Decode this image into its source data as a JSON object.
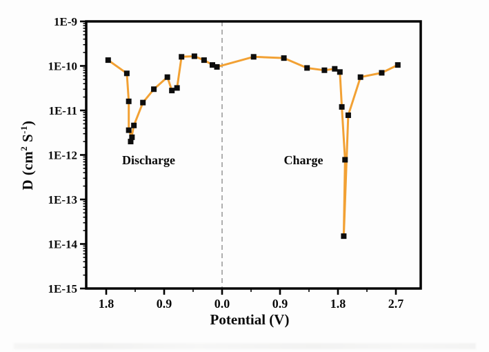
{
  "figure": {
    "y_axis": {
      "label_parts": {
        "prefix": "D (cm",
        "sup1": "2",
        "mid": " S",
        "sup2": "-1",
        "suffix": ")"
      },
      "tick_labels": [
        "1E-9",
        "1E-10",
        "1E-11",
        "1E-12",
        "1E-13",
        "1E-14",
        "1E-15"
      ],
      "tick_exponents": [
        -9,
        -10,
        -11,
        -12,
        -13,
        -14,
        -15
      ],
      "scale": "log"
    },
    "x_axis": {
      "label": "Potential (V)",
      "tick_labels": [
        "1.8",
        "0.9",
        "0.0",
        "0.9",
        "1.8",
        "2.7"
      ],
      "tick_positions": [
        -1.8,
        -0.9,
        0.0,
        0.9,
        1.8,
        2.7
      ],
      "minor_tick_positions": [
        -1.35,
        -0.45,
        0.45,
        1.35,
        2.25
      ],
      "note": "negative positions are the discharge branch; axis labels show absolute value"
    },
    "region_labels": {
      "discharge": "Discharge",
      "charge": "Charge"
    },
    "colors": {
      "line": "#F2A134",
      "marker": "#0d0d0d",
      "axis": "#000000",
      "divider": "#9b9b9b",
      "background": "#fdfdfd"
    }
  },
  "chart_data": {
    "type": "line",
    "title": "",
    "xlabel": "Potential (V)",
    "ylabel": "D (cm^2 S^-1)",
    "y_scale": "log",
    "ylim": [
      1e-15,
      1e-09
    ],
    "x_axis_folded_at": 0.0,
    "legend": "none",
    "grid": false,
    "marker": "filled-square",
    "series": [
      {
        "name": "Discharge",
        "axis_sign": -1,
        "points": [
          [
            1.77,
            1.35e-10
          ],
          [
            1.48,
            6.8e-11
          ],
          [
            1.45,
            1.6e-11
          ],
          [
            1.45,
            3.6e-12
          ],
          [
            1.4,
            2.5e-12
          ],
          [
            1.42,
            2e-12
          ],
          [
            1.37,
            4.6e-12
          ],
          [
            1.23,
            1.5e-11
          ],
          [
            1.06,
            3e-11
          ],
          [
            0.85,
            5.6e-11
          ],
          [
            0.78,
            2.8e-11
          ],
          [
            0.7,
            3.2e-11
          ],
          [
            0.63,
            1.6e-10
          ],
          [
            0.43,
            1.65e-10
          ],
          [
            0.28,
            1.35e-10
          ],
          [
            0.15,
            1.05e-10
          ],
          [
            0.08,
            9.5e-11
          ]
        ]
      },
      {
        "name": "Charge",
        "axis_sign": 1,
        "points": [
          [
            0.49,
            1.6e-10
          ],
          [
            0.96,
            1.5e-10
          ],
          [
            1.32,
            9e-11
          ],
          [
            1.59,
            8e-11
          ],
          [
            1.75,
            8.6e-11
          ],
          [
            1.83,
            7.3e-11
          ],
          [
            1.86,
            1.2e-11
          ],
          [
            1.91,
            7.8e-13
          ],
          [
            1.89,
            1.5e-14
          ],
          [
            1.96,
            7.8e-12
          ],
          [
            2.15,
            5.6e-11
          ],
          [
            2.48,
            7e-11
          ],
          [
            2.73,
            1.05e-10
          ]
        ]
      }
    ]
  }
}
